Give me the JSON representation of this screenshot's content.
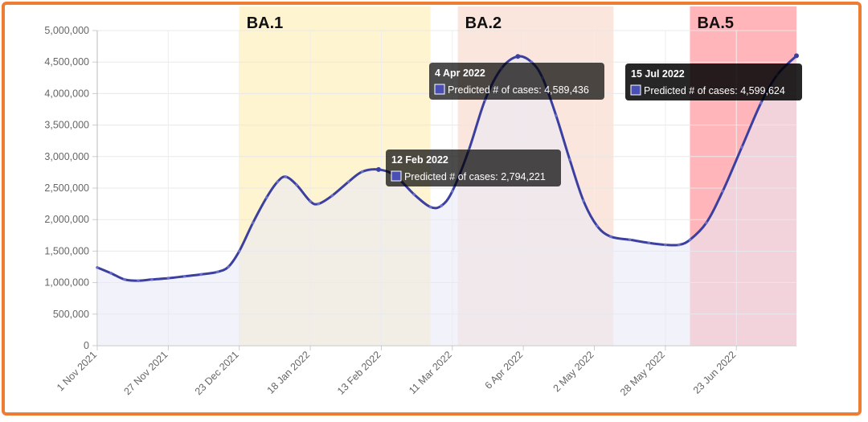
{
  "chart_data": {
    "type": "line",
    "title": "",
    "xlabel": "",
    "ylabel": "",
    "series": [
      {
        "name": "Predicted # of cases",
        "color": "#3B3FA0",
        "fill": "#E8EAF6",
        "points": [
          [
            "2021-11-01",
            1240000
          ],
          [
            "2021-11-06",
            1150000
          ],
          [
            "2021-11-11",
            1050000
          ],
          [
            "2021-11-16",
            1030000
          ],
          [
            "2021-11-21",
            1050000
          ],
          [
            "2021-11-27",
            1070000
          ],
          [
            "2021-12-03",
            1100000
          ],
          [
            "2021-12-09",
            1130000
          ],
          [
            "2021-12-15",
            1170000
          ],
          [
            "2021-12-19",
            1250000
          ],
          [
            "2021-12-23",
            1500000
          ],
          [
            "2021-12-28",
            1950000
          ],
          [
            "2022-01-02",
            2350000
          ],
          [
            "2022-01-06",
            2600000
          ],
          [
            "2022-01-09",
            2680000
          ],
          [
            "2022-01-13",
            2550000
          ],
          [
            "2022-01-18",
            2290000
          ],
          [
            "2022-01-21",
            2250000
          ],
          [
            "2022-01-26",
            2380000
          ],
          [
            "2022-02-01",
            2600000
          ],
          [
            "2022-02-06",
            2760000
          ],
          [
            "2022-02-12",
            2794221
          ],
          [
            "2022-02-18",
            2700000
          ],
          [
            "2022-02-25",
            2400000
          ],
          [
            "2022-03-03",
            2200000
          ],
          [
            "2022-03-07",
            2220000
          ],
          [
            "2022-03-11",
            2450000
          ],
          [
            "2022-03-17",
            3100000
          ],
          [
            "2022-03-23",
            3900000
          ],
          [
            "2022-03-29",
            4400000
          ],
          [
            "2022-04-04",
            4589436
          ],
          [
            "2022-04-09",
            4500000
          ],
          [
            "2022-04-13",
            4250000
          ],
          [
            "2022-04-18",
            3650000
          ],
          [
            "2022-04-23",
            2950000
          ],
          [
            "2022-04-28",
            2300000
          ],
          [
            "2022-05-03",
            1900000
          ],
          [
            "2022-05-08",
            1730000
          ],
          [
            "2022-05-15",
            1680000
          ],
          [
            "2022-05-22",
            1630000
          ],
          [
            "2022-05-28",
            1600000
          ],
          [
            "2022-06-02",
            1600000
          ],
          [
            "2022-06-06",
            1680000
          ],
          [
            "2022-06-12",
            1950000
          ],
          [
            "2022-06-18",
            2450000
          ],
          [
            "2022-06-25",
            3150000
          ],
          [
            "2022-07-02",
            3850000
          ],
          [
            "2022-07-08",
            4300000
          ],
          [
            "2022-07-15",
            4599624
          ]
        ]
      }
    ],
    "x_ticks": [
      "1 Nov 2021",
      "27 Nov 2021",
      "23 Dec 2021",
      "18 Jan 2022",
      "13 Feb 2022",
      "11 Mar 2022",
      "6 Apr 2022",
      "2 May 2022",
      "28 May 2022",
      "23 Jun 2022"
    ],
    "x_tick_dates": [
      "2021-11-01",
      "2021-11-27",
      "2021-12-23",
      "2022-01-18",
      "2022-02-13",
      "2022-03-11",
      "2022-04-06",
      "2022-05-02",
      "2022-05-28",
      "2022-06-23"
    ],
    "x_range": [
      "2021-11-01",
      "2022-07-15"
    ],
    "y_ticks": [
      "0",
      "500,000",
      "1,000,000",
      "1,500,000",
      "2,000,000",
      "2,500,000",
      "3,000,000",
      "3,500,000",
      "4,000,000",
      "4,500,000",
      "5,000,000"
    ],
    "ylim": [
      0,
      5000000
    ],
    "grid": true,
    "bands": [
      {
        "label": "BA.1",
        "start": "2021-12-23",
        "end": "2022-03-03",
        "color": "rgba(255,230,150,0.45)"
      },
      {
        "label": "BA.2",
        "start": "2022-03-13",
        "end": "2022-05-09",
        "color": "rgba(245,200,180,0.45)"
      },
      {
        "label": "BA.5",
        "start": "2022-06-06",
        "end": "2022-07-15",
        "color": "rgba(255,120,130,0.55)"
      }
    ],
    "tooltips": [
      {
        "title": "12 Feb 2022",
        "text": "Predicted # of cases: 2,794,221",
        "date": "2022-02-12",
        "value": 2794221,
        "opacity": 0.7
      },
      {
        "title": "4 Apr 2022",
        "text": "Predicted # of cases: 4,589,436",
        "date": "2022-04-04",
        "value": 4589436,
        "opacity": 0.7
      },
      {
        "title": "15 Jul 2022",
        "text": "Predicted # of cases: 4,599,624",
        "date": "2022-07-15",
        "value": 4599624,
        "opacity": 0.85
      }
    ]
  }
}
